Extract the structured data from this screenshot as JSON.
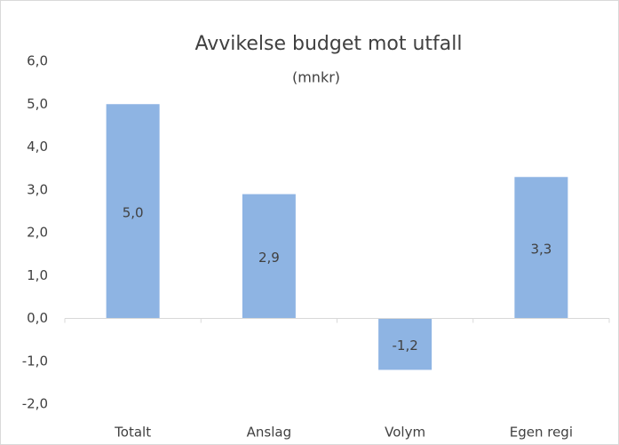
{
  "chart_data": {
    "type": "bar",
    "title": "Avvikelse budget mot utfall",
    "subtitle": "(mnkr)",
    "categories": [
      "Totalt",
      "Anslag",
      "Volym",
      "Egen regi"
    ],
    "values": [
      5.0,
      2.9,
      -1.2,
      3.3
    ],
    "value_labels": [
      "5,0",
      "2,9",
      "-1,2",
      "3,3"
    ],
    "color": "#8eb4e3",
    "ylim": [
      -2,
      6
    ],
    "yticks": [
      {
        "value": -2,
        "label": "-2,0"
      },
      {
        "value": -1,
        "label": "-1,0"
      },
      {
        "value": 0,
        "label": "0,0"
      },
      {
        "value": 1,
        "label": "1,0"
      },
      {
        "value": 2,
        "label": "2,0"
      },
      {
        "value": 3,
        "label": "3,0"
      },
      {
        "value": 4,
        "label": "4,0"
      },
      {
        "value": 5,
        "label": "5,0"
      },
      {
        "value": 6,
        "label": "6,0"
      }
    ],
    "grid": false
  }
}
